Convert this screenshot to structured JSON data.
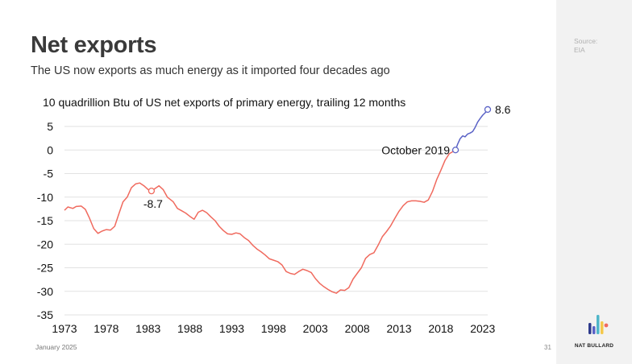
{
  "slide": {
    "title": "Net exports",
    "subtitle": "The US now exports as much energy as it imported four decades ago",
    "date": "January 2025",
    "page_number": "31"
  },
  "sidebar": {
    "source_label": "Source:",
    "source_value": "EIA",
    "brand": "NAT BULLARD"
  },
  "colors": {
    "series_before": "#f06a5e",
    "series_after": "#5a62c6",
    "grid": "#e2e2e2",
    "logo_bars": [
      "#2d3a8c",
      "#5a62c6",
      "#4fb6c9",
      "#f4c84a",
      "#f06a5e"
    ]
  },
  "chart_data": {
    "type": "line",
    "title": "10 quadrillion Btu of US net exports of primary energy, trailing 12 months",
    "xlabel": "",
    "ylabel": "",
    "xlim": [
      1973,
      2023.6
    ],
    "ylim": [
      -35,
      8.6
    ],
    "x_ticks": [
      1973,
      1978,
      1983,
      1988,
      1993,
      1998,
      2003,
      2008,
      2013,
      2018,
      2023
    ],
    "y_ticks": [
      5,
      0,
      -5,
      -10,
      -15,
      -20,
      -25,
      -30,
      -35
    ],
    "grid": "horizontal",
    "legend": "none",
    "series": [
      {
        "values": [
          [
            1973.0,
            -12.8
          ],
          [
            1973.4,
            -12.1
          ],
          [
            1974.0,
            -12.4
          ],
          [
            1974.4,
            -12.0
          ],
          [
            1975.0,
            -11.9
          ],
          [
            1975.5,
            -12.6
          ],
          [
            1976.0,
            -14.5
          ],
          [
            1976.5,
            -16.7
          ],
          [
            1977.0,
            -17.7
          ],
          [
            1977.5,
            -17.2
          ],
          [
            1978.0,
            -16.9
          ],
          [
            1978.5,
            -17.0
          ],
          [
            1979.0,
            -16.2
          ],
          [
            1979.5,
            -13.6
          ],
          [
            1980.0,
            -11.0
          ],
          [
            1980.5,
            -10.0
          ],
          [
            1981.0,
            -8.0
          ],
          [
            1981.5,
            -7.2
          ],
          [
            1982.0,
            -7.0
          ],
          [
            1982.5,
            -7.6
          ],
          [
            1983.0,
            -8.4
          ],
          [
            1983.4,
            -8.7
          ],
          [
            1983.8,
            -8.2
          ],
          [
            1984.3,
            -7.6
          ],
          [
            1984.8,
            -8.4
          ],
          [
            1985.3,
            -10.0
          ],
          [
            1986.0,
            -11.0
          ],
          [
            1986.5,
            -12.4
          ],
          [
            1987.0,
            -12.9
          ],
          [
            1987.5,
            -13.4
          ],
          [
            1988.0,
            -14.1
          ],
          [
            1988.5,
            -14.7
          ],
          [
            1989.0,
            -13.2
          ],
          [
            1989.5,
            -12.8
          ],
          [
            1990.0,
            -13.3
          ],
          [
            1990.5,
            -14.2
          ],
          [
            1991.0,
            -15.0
          ],
          [
            1991.5,
            -16.2
          ],
          [
            1992.0,
            -17.1
          ],
          [
            1992.5,
            -17.8
          ],
          [
            1993.0,
            -17.9
          ],
          [
            1993.5,
            -17.6
          ],
          [
            1994.0,
            -17.8
          ],
          [
            1994.5,
            -18.6
          ],
          [
            1995.0,
            -19.2
          ],
          [
            1995.5,
            -20.2
          ],
          [
            1996.0,
            -21.0
          ],
          [
            1996.5,
            -21.6
          ],
          [
            1997.0,
            -22.3
          ],
          [
            1997.5,
            -23.1
          ],
          [
            1998.0,
            -23.4
          ],
          [
            1998.5,
            -23.7
          ],
          [
            1999.0,
            -24.4
          ],
          [
            1999.5,
            -25.8
          ],
          [
            2000.0,
            -26.2
          ],
          [
            2000.5,
            -26.4
          ],
          [
            2001.0,
            -25.8
          ],
          [
            2001.5,
            -25.3
          ],
          [
            2002.0,
            -25.6
          ],
          [
            2002.5,
            -26.0
          ],
          [
            2003.0,
            -27.3
          ],
          [
            2003.5,
            -28.3
          ],
          [
            2004.0,
            -29.0
          ],
          [
            2004.5,
            -29.6
          ],
          [
            2005.0,
            -30.1
          ],
          [
            2005.5,
            -30.4
          ],
          [
            2006.0,
            -29.7
          ],
          [
            2006.5,
            -29.8
          ],
          [
            2007.0,
            -29.2
          ],
          [
            2007.5,
            -27.4
          ],
          [
            2008.0,
            -26.2
          ],
          [
            2008.5,
            -25.0
          ],
          [
            2009.0,
            -23.0
          ],
          [
            2009.5,
            -22.2
          ],
          [
            2010.0,
            -21.8
          ],
          [
            2010.5,
            -20.2
          ],
          [
            2011.0,
            -18.4
          ],
          [
            2011.5,
            -17.3
          ],
          [
            2012.0,
            -16.1
          ],
          [
            2012.5,
            -14.5
          ],
          [
            2013.0,
            -13.0
          ],
          [
            2013.5,
            -11.8
          ],
          [
            2014.0,
            -11.0
          ],
          [
            2014.5,
            -10.8
          ],
          [
            2015.0,
            -10.8
          ],
          [
            2015.5,
            -10.9
          ],
          [
            2016.0,
            -11.1
          ],
          [
            2016.5,
            -10.6
          ],
          [
            2017.0,
            -8.8
          ],
          [
            2017.5,
            -6.3
          ],
          [
            2018.0,
            -4.3
          ],
          [
            2018.5,
            -2.2
          ],
          [
            2019.0,
            -0.8
          ],
          [
            2019.75,
            0.0
          ]
        ]
      },
      {
        "values": [
          [
            2019.75,
            0.0
          ],
          [
            2020.0,
            1.2
          ],
          [
            2020.3,
            2.4
          ],
          [
            2020.6,
            3.0
          ],
          [
            2020.9,
            2.8
          ],
          [
            2021.2,
            3.4
          ],
          [
            2021.5,
            3.6
          ],
          [
            2021.8,
            3.9
          ],
          [
            2022.1,
            4.8
          ],
          [
            2022.4,
            5.9
          ],
          [
            2022.7,
            6.7
          ],
          [
            2023.0,
            7.4
          ],
          [
            2023.3,
            7.9
          ],
          [
            2023.6,
            8.6
          ]
        ]
      }
    ],
    "annotations": [
      {
        "label": "-8.7",
        "x": 1983.4,
        "y": -8.7
      },
      {
        "label": "October 2019",
        "x": 2019.75,
        "y": 0.0
      },
      {
        "label": "8.6",
        "x": 2023.6,
        "y": 8.6
      }
    ]
  }
}
